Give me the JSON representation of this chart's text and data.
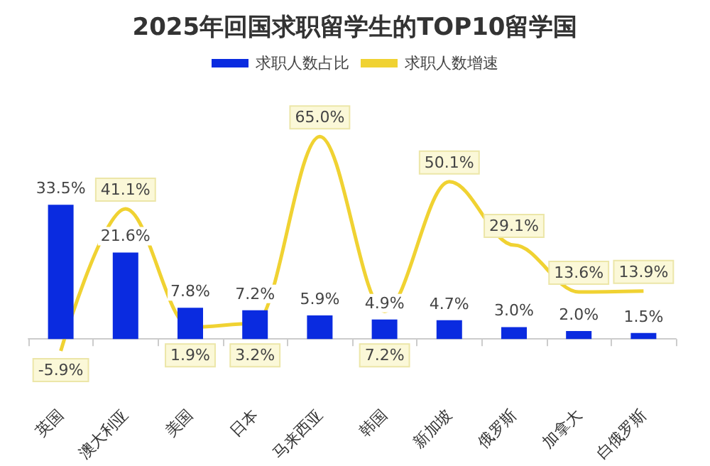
{
  "chart_data": {
    "type": "bar",
    "title": "2025年回国求职留学生的TOP10留学国",
    "categories": [
      "英国",
      "澳大利亚",
      "美国",
      "日本",
      "马来西亚",
      "韩国",
      "新加坡",
      "俄罗斯",
      "加拿大",
      "白俄罗斯"
    ],
    "series": [
      {
        "name": "求职人数占比",
        "color": "#0a2be0",
        "values": [
          33.5,
          21.6,
          7.8,
          7.2,
          5.9,
          4.9,
          4.7,
          3.0,
          2.0,
          1.5
        ],
        "value_labels": [
          "33.5%",
          "21.6%",
          "7.8%",
          "7.2%",
          "5.9%",
          "4.9%",
          "4.7%",
          "3.0%",
          "2.0%",
          "1.5%"
        ]
      },
      {
        "name": "求职人数增速",
        "type": "line",
        "axis": "y2",
        "color": "#f0d232",
        "values": [
          -5.9,
          41.1,
          1.9,
          3.2,
          65.0,
          7.2,
          50.1,
          29.1,
          13.6,
          13.9
        ],
        "value_labels": [
          "-5.9%",
          "41.1%",
          "1.9%",
          "3.2%",
          "65.0%",
          "7.2%",
          "50.1%",
          "29.1%",
          "13.6%",
          "13.9%"
        ]
      }
    ],
    "legend": "top",
    "marker": "none"
  }
}
